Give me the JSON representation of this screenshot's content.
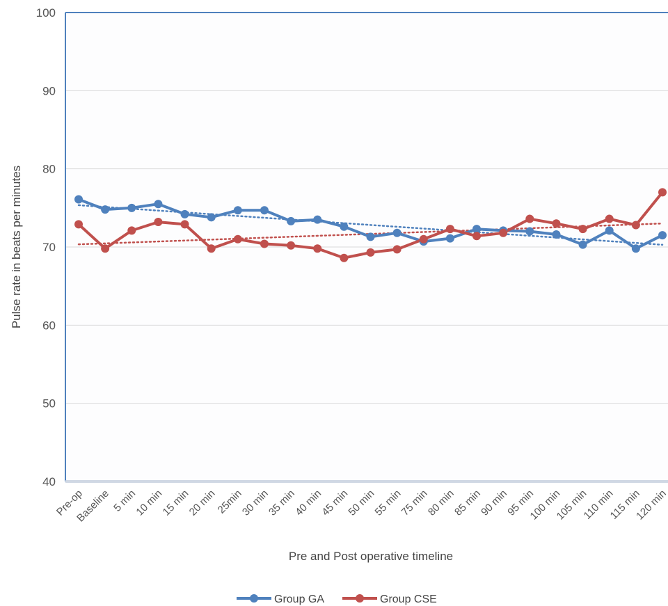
{
  "chart_data": {
    "type": "line",
    "title": "",
    "xlabel": "Pre and Post operative timeline",
    "ylabel": "Pulse rate in beats per  minutes",
    "ylim": [
      40,
      100
    ],
    "yticks": [
      40,
      50,
      60,
      70,
      80,
      90,
      100
    ],
    "grid": true,
    "legend_position": "bottom",
    "categories": [
      "Pre-op",
      "Baseline",
      "5 min",
      "10 min",
      "15 min",
      "20 min",
      "25min",
      "30 min",
      "35 min",
      "40 min",
      "45 min",
      "50 min",
      "55 min",
      "75 min",
      "80 min",
      "85 min",
      "90 min",
      "95 min",
      "100 min",
      "105 min",
      "110 min",
      "115 min",
      "120 min"
    ],
    "series": [
      {
        "name": "Group GA",
        "color": "#4F81BD",
        "trendline": "linear",
        "values": [
          76.1,
          74.8,
          75.0,
          75.5,
          74.2,
          73.8,
          74.7,
          74.7,
          73.3,
          73.5,
          72.6,
          71.3,
          71.8,
          70.7,
          71.1,
          72.3,
          72.1,
          72.0,
          71.6,
          70.3,
          72.1,
          69.8,
          71.5
        ]
      },
      {
        "name": "Group CSE",
        "color": "#C0504D",
        "trendline": "linear",
        "values": [
          72.9,
          69.8,
          72.1,
          73.2,
          72.9,
          69.8,
          71.0,
          70.4,
          70.2,
          69.8,
          68.6,
          69.3,
          69.7,
          71.0,
          72.3,
          71.4,
          71.8,
          73.6,
          73.0,
          72.3,
          73.6,
          72.8,
          77.0
        ]
      }
    ]
  }
}
